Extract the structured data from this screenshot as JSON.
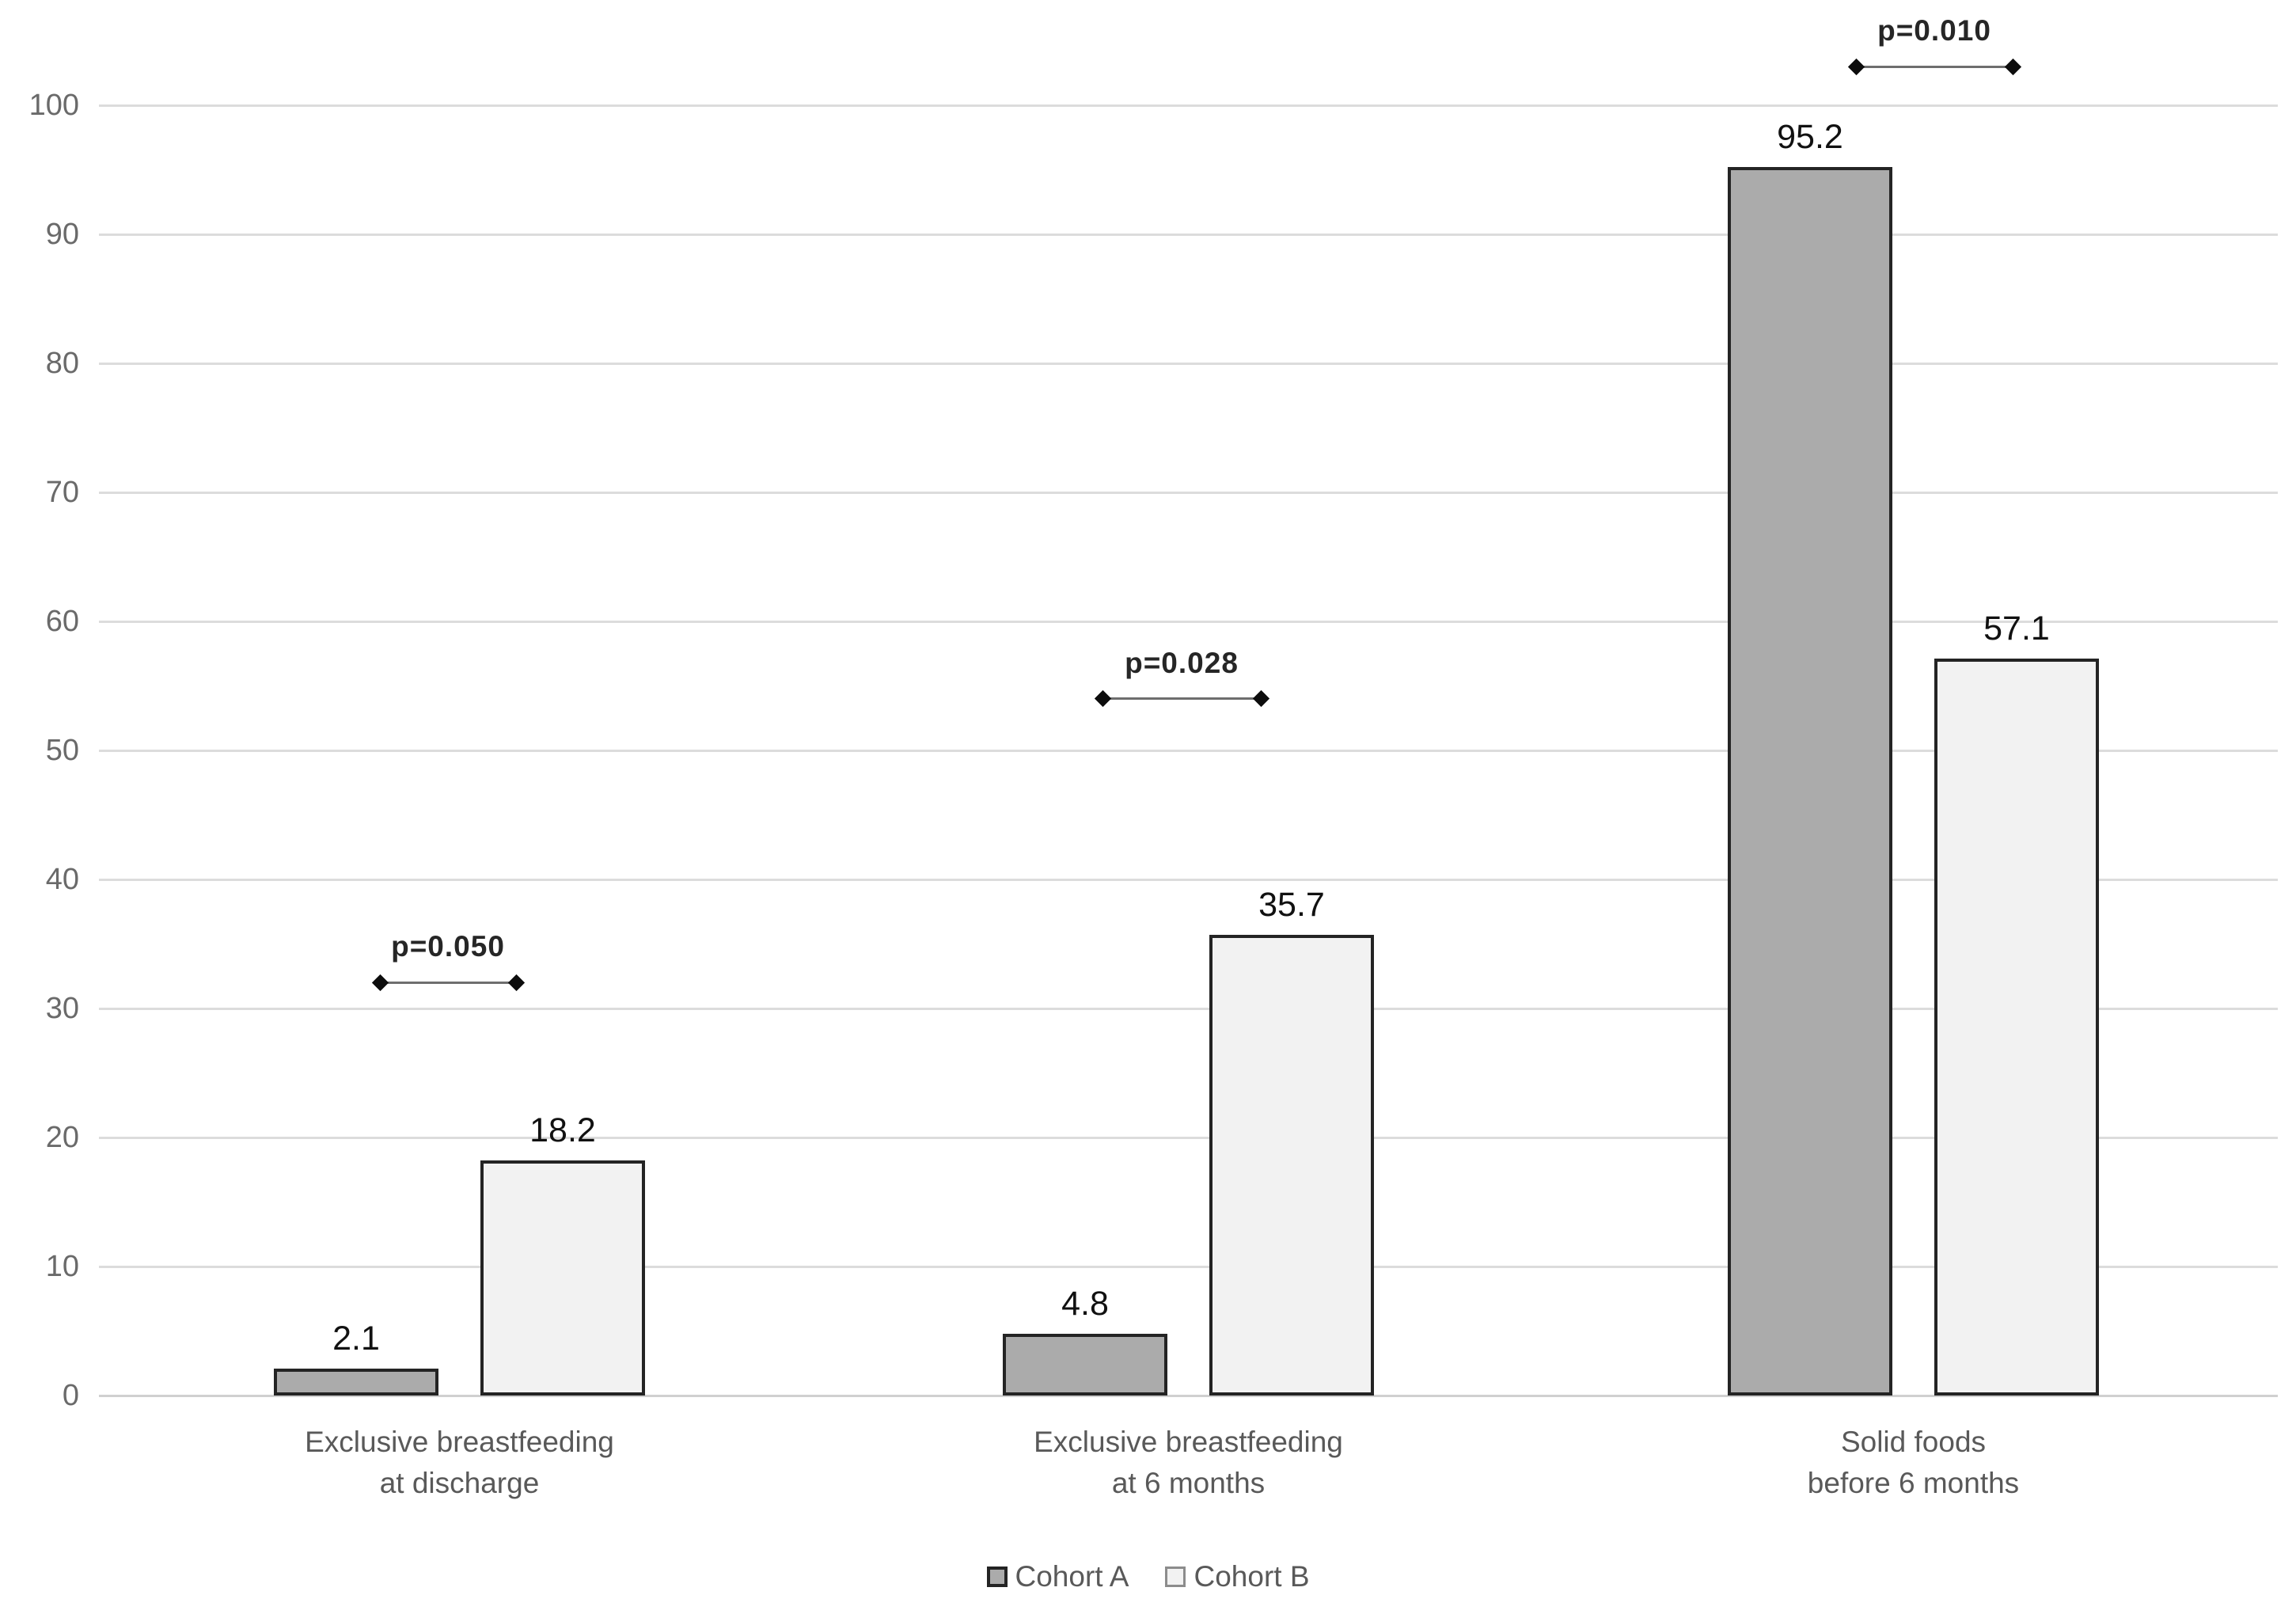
{
  "chart_data": {
    "type": "bar",
    "title": "",
    "categories": [
      [
        "Exclusive breastfeeding",
        "at discharge"
      ],
      [
        "Exclusive breastfeeding",
        "at 6 months"
      ],
      [
        "Solid foods",
        "before 6 months"
      ]
    ],
    "series": [
      {
        "name": "Cohort A",
        "values": [
          2.1,
          4.8,
          95.2
        ],
        "fill": "#ababab"
      },
      {
        "name": "Cohort B",
        "values": [
          18.2,
          35.7,
          57.1
        ],
        "fill": "#f2f2f2"
      }
    ],
    "annotations": [
      {
        "label": "p=0.050",
        "y": 32
      },
      {
        "label": "p=0.028",
        "y": 54
      },
      {
        "label": "p=0.010",
        "y": 103
      }
    ],
    "ylim": [
      0,
      100
    ],
    "ytick_step": 10,
    "ytick_labels": [
      "0",
      "10",
      "20",
      "30",
      "40",
      "50",
      "60",
      "70",
      "80",
      "90",
      "100"
    ],
    "grid": true,
    "legend_position": "bottom",
    "colors": {
      "bar_border": "#242424",
      "gridline": "#dcdcdc",
      "axis_text": "#6a6a6a",
      "value_text": "#111111",
      "annotation_text": "#262626",
      "annotation_line": "#6e6e6e",
      "category_text": "#595959"
    }
  }
}
